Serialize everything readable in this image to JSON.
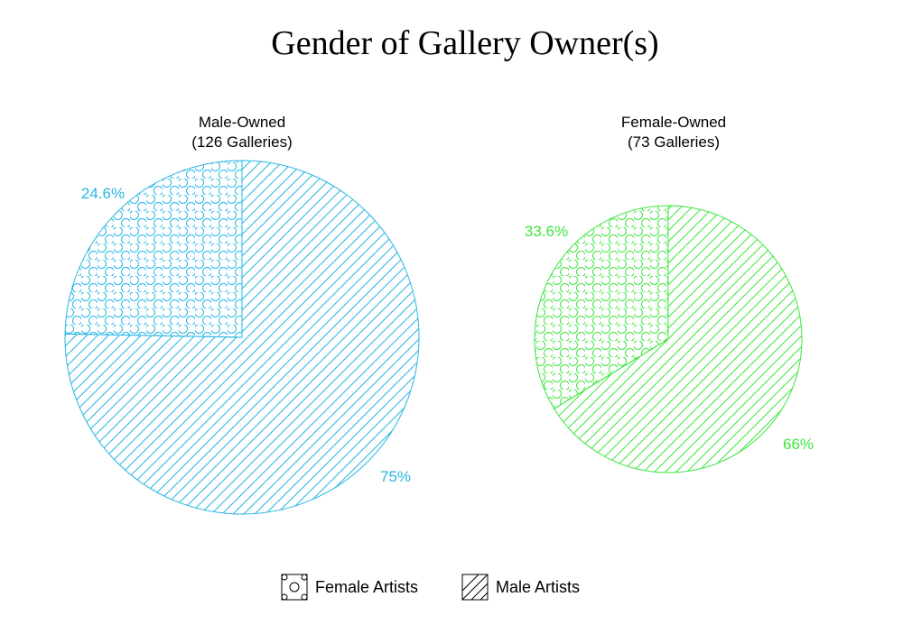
{
  "chart_data": {
    "type": "pie",
    "title": "Gender of Gallery Owner(s)",
    "legend": {
      "placement": "bottom-center",
      "entries": [
        {
          "name": "Female Artists",
          "pattern": "circles"
        },
        {
          "name": "Male Artists",
          "pattern": "diagonal-lines"
        }
      ]
    },
    "pies": [
      {
        "title_lines": [
          "Male-Owned",
          "(126 Galleries)"
        ],
        "color": "#29b6e3",
        "slices": [
          {
            "name": "Female Artists",
            "value": 24.6,
            "label": "24.6%"
          },
          {
            "name": "Male Artists",
            "value": 75,
            "label": "75%"
          }
        ]
      },
      {
        "title_lines": [
          "Female-Owned",
          "(73 Galleries)"
        ],
        "color": "#3fe63f",
        "slices": [
          {
            "name": "Female Artists",
            "value": 33.6,
            "label": "33.6%"
          },
          {
            "name": "Male Artists",
            "value": 66,
            "label": "66%"
          }
        ]
      }
    ]
  }
}
